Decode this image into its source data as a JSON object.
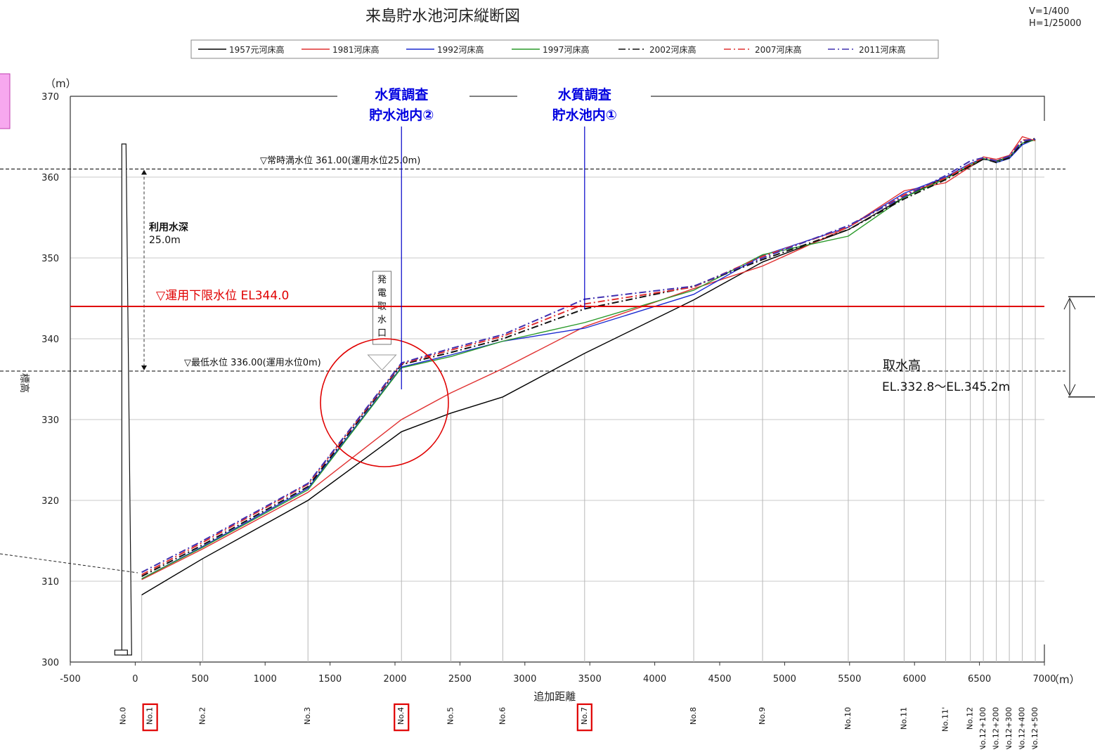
{
  "chart_data": {
    "type": "line",
    "title": "来島貯水池河床縦断図",
    "scale_notes": [
      "V=1/400",
      "H=1/25000"
    ],
    "y_unit": "（m）",
    "x_unit": "（m）",
    "xlabel": "追加距離",
    "ylabel": "標高",
    "xlim": [
      -500,
      7000
    ],
    "ylim": [
      300,
      370
    ],
    "x_ticks": [
      -500,
      0,
      500,
      1000,
      1500,
      2000,
      2500,
      3000,
      3500,
      4000,
      4500,
      5000,
      5500,
      6000,
      6500,
      7000
    ],
    "y_ticks": [
      300,
      310,
      320,
      330,
      340,
      350,
      360,
      370
    ],
    "grid": true,
    "legend_position": "top",
    "stations": [
      {
        "label": "No.0",
        "x": -60,
        "highlight": false
      },
      {
        "label": "No.1",
        "x": 50,
        "highlight": true
      },
      {
        "label": "No.2",
        "x": 520,
        "highlight": false
      },
      {
        "label": "No.3",
        "x": 1330,
        "highlight": false
      },
      {
        "label": "No.4",
        "x": 2050,
        "highlight": true
      },
      {
        "label": "No.5",
        "x": 2430,
        "highlight": false
      },
      {
        "label": "No.6",
        "x": 2830,
        "highlight": false
      },
      {
        "label": "No.7",
        "x": 3460,
        "highlight": true
      },
      {
        "label": "No.8",
        "x": 4300,
        "highlight": false
      },
      {
        "label": "No.9",
        "x": 4830,
        "highlight": false
      },
      {
        "label": "No.10",
        "x": 5490,
        "highlight": false
      },
      {
        "label": "No.11",
        "x": 5920,
        "highlight": false
      },
      {
        "label": "No.11'",
        "x": 6240,
        "highlight": false
      },
      {
        "label": "No.12",
        "x": 6430,
        "highlight": false
      },
      {
        "label": "No.12+100",
        "x": 6530,
        "highlight": false
      },
      {
        "label": "No.12+200",
        "x": 6630,
        "highlight": false
      },
      {
        "label": "No.12+300",
        "x": 6730,
        "highlight": false
      },
      {
        "label": "No.12+400",
        "x": 6830,
        "highlight": false
      },
      {
        "label": "No.12+500",
        "x": 6930,
        "highlight": false
      }
    ],
    "series": [
      {
        "name": "1957元河床高",
        "color": "#000000",
        "dash": "solid",
        "x": [
          50,
          520,
          1330,
          2050,
          2430,
          2830,
          3460,
          4300,
          4830,
          5490,
          5920,
          6240,
          6430,
          6530,
          6630,
          6730,
          6830,
          6930
        ],
        "y": [
          308.3,
          312.8,
          320.0,
          328.5,
          330.8,
          332.8,
          338.2,
          344.8,
          349.5,
          353.5,
          357.5,
          360.0,
          361.3,
          362.2,
          362.0,
          362.5,
          364.2,
          364.7
        ]
      },
      {
        "name": "1981河床高",
        "color": "#e03030",
        "dash": "solid",
        "x": [
          50,
          520,
          1330,
          2050,
          2430,
          2830,
          3460,
          4300,
          4830,
          5490,
          5920,
          6240,
          6430,
          6530,
          6630,
          6730,
          6830,
          6930
        ],
        "y": [
          310.2,
          314.0,
          321.0,
          330.0,
          333.3,
          336.3,
          341.5,
          346.2,
          349.0,
          353.8,
          358.3,
          359.3,
          361.3,
          362.5,
          362.2,
          362.7,
          365.0,
          364.5
        ]
      },
      {
        "name": "1992河床高",
        "color": "#1a2ad0",
        "dash": "solid",
        "x": [
          50,
          520,
          1330,
          2050,
          2430,
          2830,
          3460,
          4300,
          4830,
          5490,
          5920,
          6240,
          6430,
          6530,
          6630,
          6730,
          6830,
          6930
        ],
        "y": [
          310.3,
          314.3,
          321.5,
          336.5,
          338.0,
          339.7,
          341.3,
          345.5,
          350.3,
          353.8,
          358.0,
          360.0,
          361.7,
          362.3,
          361.8,
          362.3,
          364.0,
          364.7
        ]
      },
      {
        "name": "1997河床高",
        "color": "#2a9a2a",
        "dash": "solid",
        "x": [
          50,
          520,
          1330,
          2050,
          2430,
          2830,
          3460,
          4300,
          4830,
          5490,
          5920,
          6240,
          6430,
          6530,
          6630,
          6730,
          6830,
          6930
        ],
        "y": [
          310.3,
          314.2,
          321.3,
          336.4,
          337.8,
          339.7,
          342.0,
          346.0,
          350.4,
          352.7,
          357.5,
          359.8,
          361.5,
          362.3,
          361.9,
          362.5,
          364.2,
          364.6
        ]
      },
      {
        "name": "2002河床高",
        "color": "#111111",
        "dash": "dashdot",
        "x": [
          50,
          520,
          1330,
          2050,
          2430,
          2830,
          3460,
          4300,
          4830,
          5490,
          5920,
          6240,
          6430,
          6530,
          6630,
          6730,
          6830,
          6930
        ],
        "y": [
          310.6,
          314.5,
          321.7,
          336.8,
          338.3,
          340.0,
          343.7,
          346.5,
          349.8,
          353.5,
          357.3,
          359.7,
          361.4,
          362.3,
          361.8,
          362.4,
          364.2,
          364.8
        ]
      },
      {
        "name": "2007河床高",
        "color": "#e03030",
        "dash": "dashdot",
        "x": [
          50,
          520,
          1330,
          2050,
          2430,
          2830,
          3460,
          4300,
          4830,
          5490,
          5920,
          6240,
          6430,
          6530,
          6630,
          6730,
          6830,
          6930
        ],
        "y": [
          310.8,
          314.8,
          322.0,
          336.9,
          338.6,
          340.3,
          344.3,
          346.4,
          350.2,
          353.8,
          357.8,
          359.9,
          361.6,
          362.4,
          362.0,
          362.6,
          364.6,
          364.6
        ]
      },
      {
        "name": "2011河床高",
        "color": "#4030b0",
        "dash": "dashdot",
        "x": [
          50,
          520,
          1330,
          2050,
          2430,
          2830,
          3460,
          4300,
          4830,
          5490,
          5920,
          6240,
          6430,
          6530,
          6630,
          6730,
          6830,
          6930
        ],
        "y": [
          311.1,
          315.0,
          322.1,
          337.0,
          338.8,
          340.5,
          344.9,
          346.5,
          350.0,
          354.0,
          357.6,
          360.2,
          362.0,
          362.4,
          362.0,
          362.6,
          364.5,
          364.7
        ]
      }
    ],
    "annotations": {
      "normal_full_level": {
        "label": "▽常時満水位 361.00(運用水位25.0m)",
        "y": 361.0
      },
      "min_level": {
        "label": "▽最低水位 336.00(運用水位0m)",
        "y": 336.0
      },
      "operation_lower_limit": {
        "label": "▽運用下限水位 EL344.0",
        "y": 344.0,
        "color": "#e00000"
      },
      "usable_depth": {
        "line1": "利用水深",
        "line2": "25.0m"
      },
      "intake": {
        "chars": [
          "発",
          "電",
          "取",
          "水",
          "口"
        ],
        "x": 1900
      },
      "intake_height": {
        "line1": "取水高",
        "line2": "EL.332.8～EL.345.2m"
      },
      "survey_points": [
        {
          "line1": "水質調査",
          "line2": "貯水池内②",
          "x": 2050,
          "color": "#0000e0"
        },
        {
          "line1": "水質調査",
          "line2": "貯水池内①",
          "x": 3460,
          "color": "#0000e0"
        }
      ]
    }
  }
}
